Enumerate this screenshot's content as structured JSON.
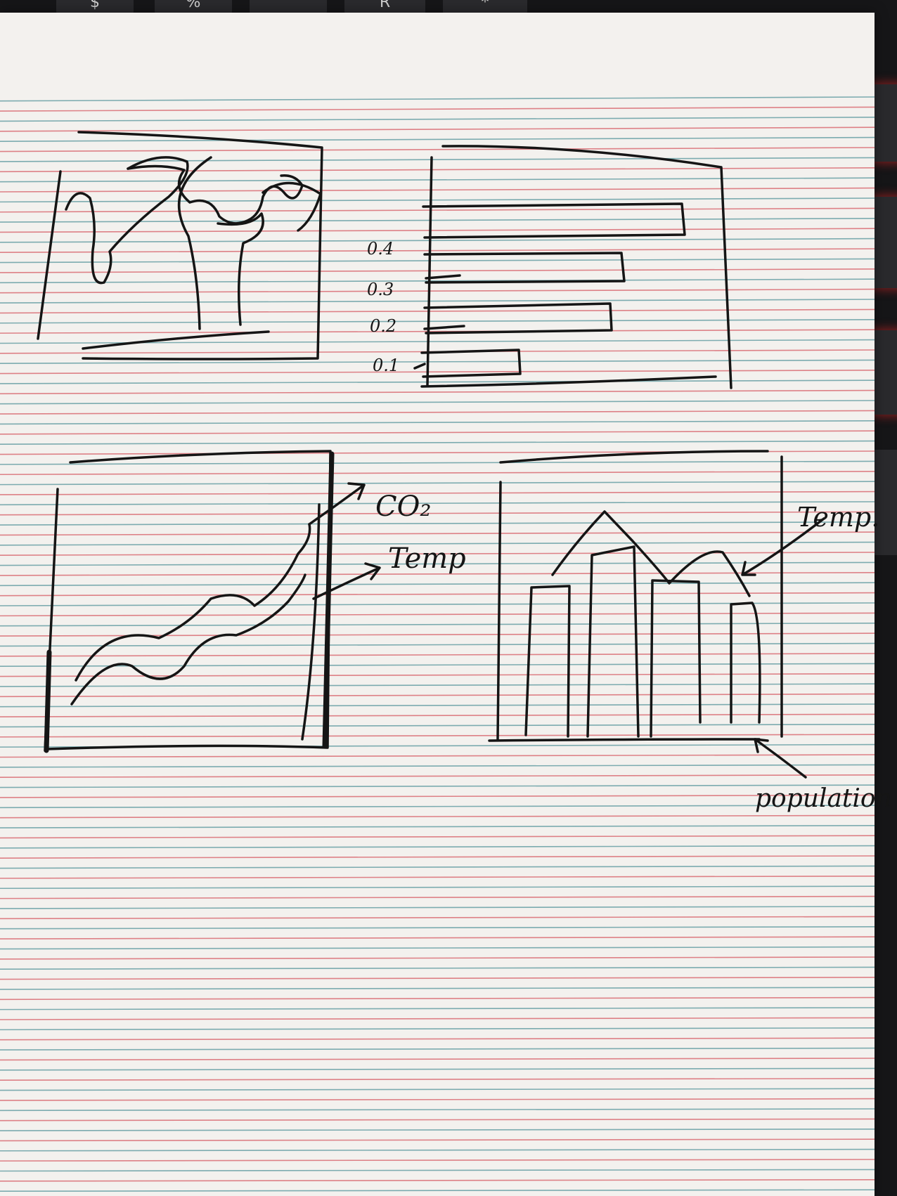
{
  "keyboard": {
    "keys": [
      "$",
      "%",
      "^",
      "R",
      "*"
    ]
  },
  "sketch_barchart": {
    "tick_labels": [
      "0.4",
      "0.3",
      "0.2",
      "0.1"
    ]
  },
  "sketch_linechart": {
    "labels": [
      "CO₂",
      "Temp"
    ]
  },
  "sketch_combo": {
    "labels": [
      "Temp.",
      "population"
    ]
  },
  "colors": {
    "paper": "#f3f1ee",
    "rule_blue": "#5f9aa0",
    "rule_red": "#d8656d",
    "ink": "#151515"
  }
}
